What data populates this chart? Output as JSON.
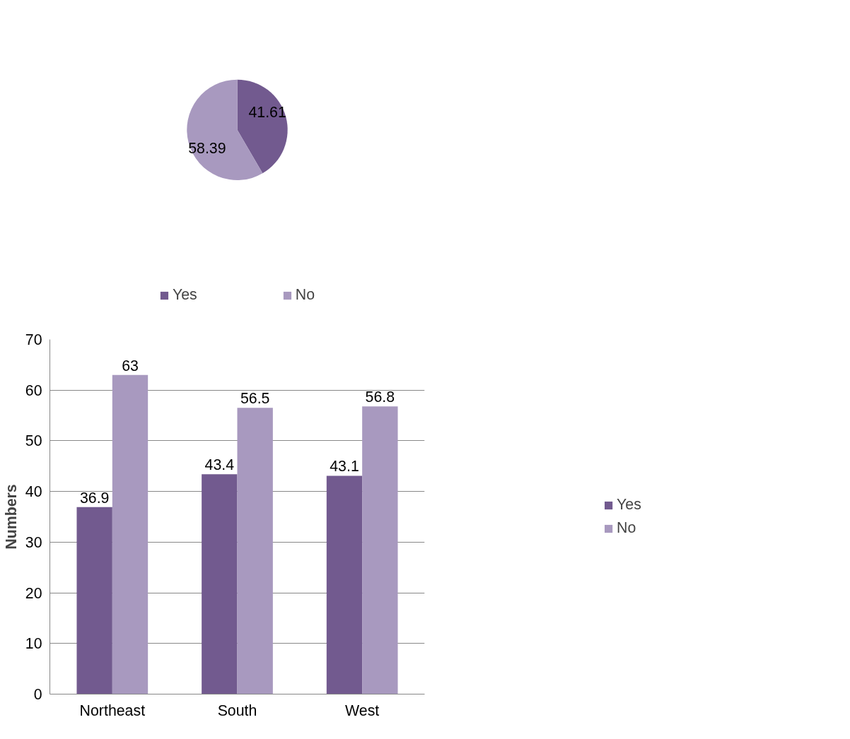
{
  "chart_data": [
    {
      "type": "pie",
      "categories": [
        "Yes",
        "No"
      ],
      "values": [
        41.61,
        58.39
      ],
      "colors": [
        "#725a8f",
        "#a899bf"
      ],
      "data_labels": true,
      "legend": "bottom"
    },
    {
      "type": "bar",
      "categories": [
        "Northeast",
        "South",
        "West"
      ],
      "ylabel": "Numbers",
      "ylim": [
        0,
        70
      ],
      "yticks": [
        0,
        10,
        20,
        30,
        40,
        50,
        60,
        70
      ],
      "grid": "y",
      "legend": "right",
      "data_labels": true,
      "series": [
        {
          "name": "Yes",
          "color": "#725a8f",
          "values": [
            36.9,
            43.4,
            43.1
          ]
        },
        {
          "name": "No",
          "color": "#a899bf",
          "values": [
            63,
            56.5,
            56.8
          ]
        }
      ]
    }
  ]
}
